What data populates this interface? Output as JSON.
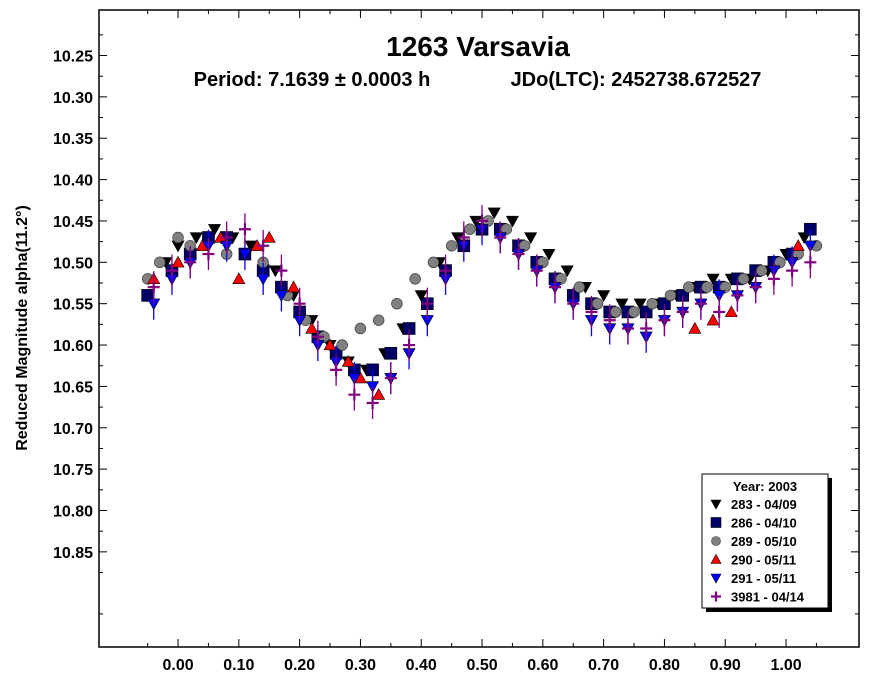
{
  "chart_data": {
    "type": "scatter",
    "title": "1263 Varsavia",
    "subtitle_period": "Period: 7.1639 ± 0.0003 h",
    "subtitle_epoch": "JDo(LTC): 2452738.672527",
    "xlabel": "",
    "ylabel": "Reduced Magnitude alpha(11.2°)",
    "xlim": [
      -0.13,
      1.12
    ],
    "ylim": [
      10.965,
      10.195
    ],
    "y_inverted": true,
    "x_ticks": [
      "0.00",
      "0.10",
      "0.20",
      "0.30",
      "0.40",
      "0.50",
      "0.60",
      "0.70",
      "0.80",
      "0.90",
      "1.00"
    ],
    "y_ticks": [
      "10.25",
      "10.30",
      "10.35",
      "10.40",
      "10.45",
      "10.50",
      "10.55",
      "10.60",
      "10.65",
      "10.70",
      "10.75",
      "10.80",
      "10.85"
    ],
    "legend": {
      "title": "Year: 2003",
      "position": "bottom-right",
      "entries": [
        {
          "label": "283 - 04/09",
          "marker": "triangle-down",
          "color": "#000000"
        },
        {
          "label": "286 - 04/10",
          "marker": "square",
          "color": "#000066"
        },
        {
          "label": "289 - 05/10",
          "marker": "circle",
          "color": "#808080"
        },
        {
          "label": "290 - 05/11",
          "marker": "triangle-up",
          "color": "#ff0000"
        },
        {
          "label": "291 - 05/11",
          "marker": "triangle-down",
          "color": "#0000ff"
        },
        {
          "label": "3981 - 04/14",
          "marker": "plus",
          "color": "#800080"
        }
      ]
    },
    "series": [
      {
        "label": "283 - 04/09",
        "marker": "triangle-down",
        "color": "#000000",
        "x": [
          -0.02,
          0.0,
          0.03,
          0.06,
          0.09,
          0.12,
          0.16,
          0.19,
          0.22,
          0.25,
          0.28,
          0.31,
          0.34,
          0.37,
          0.4,
          0.43,
          0.46,
          0.49,
          0.52,
          0.55,
          0.58,
          0.61,
          0.64,
          0.67,
          0.7,
          0.73,
          0.76,
          0.79,
          0.82,
          0.85,
          0.88,
          0.91,
          0.94,
          0.97,
          1.0,
          1.03
        ],
        "y": [
          10.5,
          10.48,
          10.47,
          10.46,
          10.47,
          10.48,
          10.51,
          10.54,
          10.57,
          10.6,
          10.62,
          10.63,
          10.61,
          10.58,
          10.54,
          10.5,
          10.47,
          10.45,
          10.44,
          10.45,
          10.47,
          10.49,
          10.51,
          10.53,
          10.54,
          10.55,
          10.55,
          10.55,
          10.54,
          10.53,
          10.52,
          10.52,
          10.52,
          10.51,
          10.49,
          10.47
        ]
      },
      {
        "label": "286 - 04/10",
        "marker": "square",
        "color": "#000066",
        "x": [
          -0.05,
          -0.01,
          0.02,
          0.05,
          0.08,
          0.11,
          0.14,
          0.17,
          0.2,
          0.23,
          0.26,
          0.29,
          0.32,
          0.35,
          0.38,
          0.41,
          0.44,
          0.47,
          0.5,
          0.53,
          0.56,
          0.59,
          0.62,
          0.65,
          0.68,
          0.71,
          0.74,
          0.77,
          0.8,
          0.83,
          0.86,
          0.89,
          0.92,
          0.95,
          0.98,
          1.01,
          1.04
        ],
        "y": [
          10.54,
          10.51,
          10.49,
          10.47,
          10.47,
          10.49,
          10.51,
          10.53,
          10.56,
          10.59,
          10.61,
          10.63,
          10.63,
          10.61,
          10.58,
          10.55,
          10.51,
          10.48,
          10.46,
          10.46,
          10.48,
          10.5,
          10.52,
          10.54,
          10.55,
          10.56,
          10.56,
          10.56,
          10.55,
          10.54,
          10.53,
          10.53,
          10.52,
          10.51,
          10.5,
          10.49,
          10.46
        ]
      },
      {
        "label": "289 - 05/10",
        "marker": "circle",
        "color": "#808080",
        "x": [
          -0.05,
          -0.03,
          0.0,
          0.02,
          0.08,
          0.14,
          0.18,
          0.21,
          0.24,
          0.27,
          0.3,
          0.33,
          0.36,
          0.39,
          0.42,
          0.45,
          0.48,
          0.51,
          0.54,
          0.57,
          0.6,
          0.63,
          0.66,
          0.69,
          0.72,
          0.75,
          0.78,
          0.81,
          0.84,
          0.87,
          0.9,
          0.93,
          0.96,
          0.99,
          1.02,
          1.05
        ],
        "y": [
          10.52,
          10.5,
          10.47,
          10.48,
          10.49,
          10.5,
          10.54,
          10.57,
          10.59,
          10.6,
          10.58,
          10.57,
          10.55,
          10.52,
          10.5,
          10.48,
          10.46,
          10.45,
          10.46,
          10.48,
          10.5,
          10.52,
          10.53,
          10.55,
          10.56,
          10.56,
          10.55,
          10.54,
          10.53,
          10.53,
          10.53,
          10.52,
          10.51,
          10.5,
          10.49,
          10.48
        ]
      },
      {
        "label": "290 - 05/11",
        "marker": "triangle-up",
        "color": "#ff0000",
        "x": [
          -0.04,
          0.0,
          0.04,
          0.07,
          0.1,
          0.13,
          0.15,
          0.19,
          0.22,
          0.25,
          0.28,
          0.3,
          0.33,
          0.85,
          0.88,
          0.91,
          1.02
        ],
        "y": [
          10.52,
          10.5,
          10.48,
          10.47,
          10.52,
          10.48,
          10.47,
          10.53,
          10.58,
          10.6,
          10.62,
          10.64,
          10.66,
          10.58,
          10.57,
          10.56,
          10.48
        ]
      },
      {
        "label": "291 - 05/11",
        "marker": "triangle-down",
        "color": "#0000ff",
        "x": [
          -0.04,
          -0.01,
          0.02,
          0.05,
          0.08,
          0.11,
          0.14,
          0.17,
          0.2,
          0.23,
          0.26,
          0.29,
          0.32,
          0.35,
          0.38,
          0.41,
          0.44,
          0.47,
          0.5,
          0.53,
          0.56,
          0.59,
          0.62,
          0.65,
          0.68,
          0.71,
          0.74,
          0.77,
          0.8,
          0.83,
          0.86,
          0.89,
          0.92,
          0.95,
          0.98,
          1.01,
          1.04
        ],
        "y": [
          10.55,
          10.52,
          10.5,
          10.48,
          10.48,
          10.49,
          10.52,
          10.54,
          10.57,
          10.6,
          10.62,
          10.64,
          10.65,
          10.64,
          10.61,
          10.57,
          10.52,
          10.48,
          10.46,
          10.47,
          10.49,
          10.51,
          10.53,
          10.55,
          10.57,
          10.58,
          10.58,
          10.59,
          10.57,
          10.56,
          10.55,
          10.54,
          10.54,
          10.53,
          10.51,
          10.5,
          10.48
        ]
      },
      {
        "label": "3981 - 04/14",
        "marker": "plus",
        "color": "#800080",
        "x": [
          -0.04,
          -0.01,
          0.02,
          0.05,
          0.08,
          0.11,
          0.14,
          0.17,
          0.2,
          0.23,
          0.26,
          0.29,
          0.32,
          0.35,
          0.38,
          0.41,
          0.44,
          0.47,
          0.5,
          0.53,
          0.56,
          0.59,
          0.62,
          0.65,
          0.68,
          0.71,
          0.74,
          0.77,
          0.8,
          0.83,
          0.86,
          0.89,
          0.92,
          0.95,
          0.98,
          1.01,
          1.04
        ],
        "y": [
          10.53,
          10.51,
          10.5,
          10.49,
          10.47,
          10.46,
          10.48,
          10.51,
          10.55,
          10.59,
          10.63,
          10.66,
          10.67,
          10.64,
          10.6,
          10.55,
          10.51,
          10.47,
          10.45,
          10.47,
          10.49,
          10.51,
          10.53,
          10.55,
          10.56,
          10.57,
          10.58,
          10.58,
          10.57,
          10.56,
          10.55,
          10.56,
          10.54,
          10.53,
          10.52,
          10.51,
          10.5
        ]
      }
    ],
    "grid": false,
    "plot_bg": "#ffffff",
    "border_color": "#000000"
  }
}
